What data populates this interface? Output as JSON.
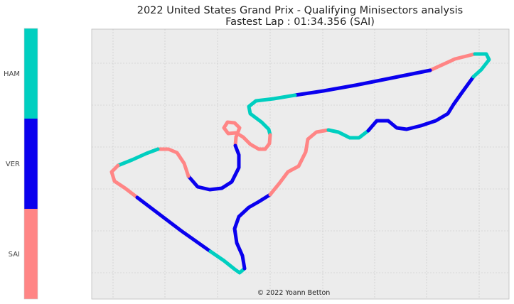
{
  "chart_data": {
    "type": "track-map",
    "title": "2022 United States Grand Prix - Qualifying Minisectors analysis",
    "subtitle": "Fastest Lap : 01:34.356 (SAI)",
    "credit": "© 2022 Yoann Betton",
    "grid": true,
    "legend": {
      "type": "colorbar",
      "placement": "left",
      "entries": [
        {
          "label": "HAM",
          "color": "#00cfc0"
        },
        {
          "label": "VER",
          "color": "#0a00ee"
        },
        {
          "label": "SAI",
          "color": "#ff8585"
        }
      ]
    },
    "series": [
      {
        "name": "SAI",
        "color": "#ff8585"
      },
      {
        "name": "VER",
        "color": "#0a00ee"
      },
      {
        "name": "HAM",
        "color": "#00cfc0"
      }
    ],
    "minisectors": [
      {
        "fastest": "SAI",
        "path": [
          [
            668,
            76
          ],
          [
            640,
            83
          ],
          [
            605,
            99
          ]
        ]
      },
      {
        "fastest": "VER",
        "path": [
          [
            605,
            99
          ],
          [
            560,
            108
          ],
          [
            500,
            120
          ],
          [
            455,
            128
          ],
          [
            415,
            134
          ]
        ]
      },
      {
        "fastest": "HAM",
        "path": [
          [
            415,
            134
          ],
          [
            385,
            139
          ],
          [
            360,
            142
          ],
          [
            350,
            150
          ],
          [
            352,
            160
          ],
          [
            360,
            166
          ],
          [
            368,
            172
          ],
          [
            378,
            182
          ],
          [
            380,
            190
          ]
        ]
      },
      {
        "fastest": "SAI",
        "path": [
          [
            380,
            190
          ],
          [
            379,
            202
          ],
          [
            373,
            210
          ],
          [
            364,
            210
          ],
          [
            352,
            203
          ],
          [
            342,
            193
          ],
          [
            332,
            187
          ],
          [
            321,
            188
          ],
          [
            315,
            180
          ],
          [
            320,
            172
          ],
          [
            330,
            173
          ],
          [
            337,
            180
          ],
          [
            332,
            193
          ]
        ]
      },
      {
        "fastest": "SAI",
        "path": [
          [
            332,
            193
          ],
          [
            331,
            205
          ]
        ]
      },
      {
        "fastest": "VER",
        "path": [
          [
            331,
            205
          ],
          [
            336,
            218
          ],
          [
            336,
            236
          ],
          [
            326,
            256
          ],
          [
            312,
            265
          ],
          [
            295,
            267
          ],
          [
            278,
            263
          ],
          [
            265,
            248
          ]
        ]
      },
      {
        "fastest": "SAI",
        "path": [
          [
            265,
            248
          ],
          [
            259,
            230
          ],
          [
            249,
            215
          ],
          [
            237,
            210
          ],
          [
            222,
            210
          ]
        ]
      },
      {
        "fastest": "HAM",
        "path": [
          [
            222,
            210
          ],
          [
            206,
            216
          ],
          [
            186,
            225
          ],
          [
            166,
            233
          ]
        ]
      },
      {
        "fastest": "SAI",
        "path": [
          [
            166,
            233
          ],
          [
            157,
            242
          ],
          [
            161,
            255
          ],
          [
            176,
            265
          ],
          [
            193,
            278
          ]
        ]
      },
      {
        "fastest": "VER",
        "path": [
          [
            193,
            278
          ],
          [
            222,
            300
          ],
          [
            255,
            325
          ],
          [
            296,
            354
          ]
        ]
      },
      {
        "fastest": "HAM",
        "path": [
          [
            296,
            354
          ],
          [
            315,
            367
          ],
          [
            330,
            379
          ],
          [
            337,
            384
          ],
          [
            344,
            378
          ]
        ]
      },
      {
        "fastest": "VER",
        "path": [
          [
            344,
            378
          ],
          [
            341,
            360
          ],
          [
            333,
            342
          ],
          [
            330,
            322
          ],
          [
            336,
            305
          ],
          [
            350,
            292
          ],
          [
            364,
            284
          ],
          [
            380,
            274
          ]
        ]
      },
      {
        "fastest": "SAI",
        "path": [
          [
            380,
            274
          ],
          [
            393,
            258
          ],
          [
            405,
            242
          ],
          [
            420,
            234
          ],
          [
            430,
            214
          ],
          [
            433,
            196
          ],
          [
            445,
            186
          ],
          [
            462,
            183
          ]
        ]
      },
      {
        "fastest": "HAM",
        "path": [
          [
            462,
            183
          ],
          [
            476,
            186
          ],
          [
            492,
            194
          ],
          [
            505,
            194
          ],
          [
            518,
            184
          ]
        ]
      },
      {
        "fastest": "VER",
        "path": [
          [
            518,
            184
          ],
          [
            530,
            170
          ],
          [
            546,
            170
          ],
          [
            558,
            180
          ],
          [
            572,
            182
          ],
          [
            592,
            177
          ],
          [
            613,
            170
          ],
          [
            630,
            160
          ],
          [
            638,
            147
          ],
          [
            650,
            130
          ],
          [
            666,
            108
          ]
        ]
      },
      {
        "fastest": "HAM",
        "path": [
          [
            666,
            108
          ],
          [
            677,
            98
          ],
          [
            688,
            84
          ],
          [
            684,
            76
          ],
          [
            668,
            76
          ]
        ]
      }
    ]
  }
}
